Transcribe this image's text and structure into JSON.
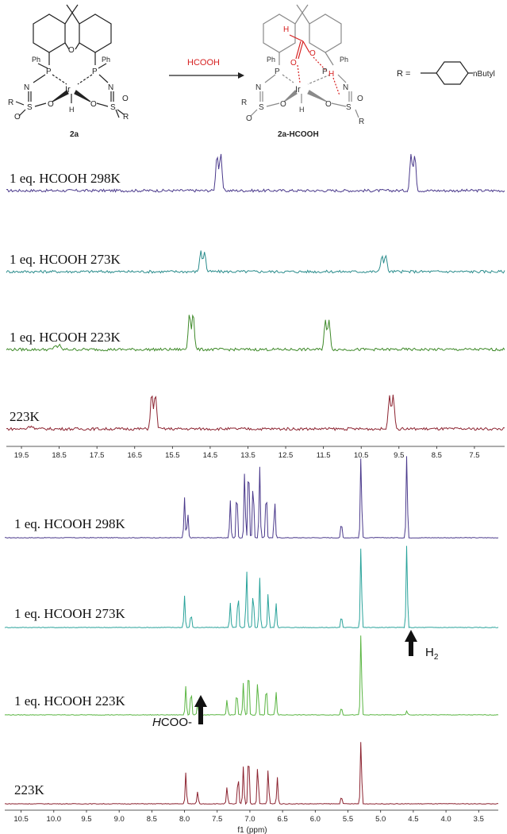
{
  "scheme": {
    "reagent": "HCOOH",
    "reactant_label": "2a",
    "product_label": "2a-HCOOH",
    "r_definition_prefix": "R =",
    "r_substituent": "nButyl",
    "atoms": {
      "ir": "Ir",
      "p": "P",
      "n": "N",
      "s": "S",
      "o": "O",
      "h": "H",
      "r": "R",
      "ph": "Ph"
    },
    "colors": {
      "reagent": "#d62020",
      "product_highlight": "#d62020",
      "structure": "#222222"
    }
  },
  "chart_data": [
    {
      "type": "line",
      "title": "",
      "xlabel": "",
      "ylabel": "",
      "xlim": [
        19.9,
        6.7
      ],
      "xticks": [
        19.5,
        18.5,
        17.5,
        16.5,
        15.5,
        14.5,
        13.5,
        12.5,
        11.5,
        10.5,
        9.5,
        8.5,
        7.5
      ],
      "tick_labels": [
        "19.5",
        "18.5",
        "17.5",
        "16.5",
        "15.5",
        "14.5",
        "13.5",
        "12.5",
        "11.5",
        "10.5",
        "9.5",
        "8.5",
        "7.5"
      ],
      "grid": false,
      "legend": "none",
      "series": [
        {
          "name": "1 eq. HCOOH 298K",
          "color": "#4b3a8c",
          "peaks": [
            {
              "ppm": 14.22,
              "height": 1.0
            },
            {
              "ppm": 9.08,
              "height": 1.0
            }
          ]
        },
        {
          "name": "1 eq. HCOOH 273K",
          "color": "#2a8c8c",
          "peaks": [
            {
              "ppm": 14.65,
              "height": 0.55
            },
            {
              "ppm": 9.85,
              "height": 0.45
            }
          ]
        },
        {
          "name": "1 eq. HCOOH 223K",
          "color": "#3f8a2a",
          "peaks": [
            {
              "ppm": 14.95,
              "height": 1.0
            },
            {
              "ppm": 11.35,
              "height": 0.8
            },
            {
              "ppm": 18.5,
              "height": 0.12
            }
          ]
        },
        {
          "name": "223K",
          "color": "#8c2330",
          "peaks": [
            {
              "ppm": 15.95,
              "height": 0.95
            },
            {
              "ppm": 9.65,
              "height": 0.95
            },
            {
              "ppm": 19.2,
              "height": 0.08
            }
          ]
        }
      ]
    },
    {
      "type": "line",
      "title": "",
      "xlabel": "f1 (ppm)",
      "ylabel": "",
      "xlim": [
        10.75,
        3.2
      ],
      "xticks": [
        10.5,
        10.0,
        9.5,
        9.0,
        8.5,
        8.0,
        7.5,
        7.0,
        6.5,
        6.0,
        5.5,
        5.0,
        4.5,
        4.0,
        3.5
      ],
      "tick_labels": [
        "10.5",
        "10.0",
        "9.5",
        "9.0",
        "8.5",
        "8.0",
        "7.5",
        "7.0",
        "6.5",
        "6.0",
        "5.5",
        "5.0",
        "4.5",
        "4.0",
        "3.5"
      ],
      "grid": false,
      "legend": "none",
      "series": [
        {
          "name": "1 eq. HCOOH 298K",
          "color": "#4b3a8c",
          "peaks": [
            {
              "ppm": 8.0,
              "height": 0.48
            },
            {
              "ppm": 7.95,
              "height": 0.3
            },
            {
              "ppm": 7.3,
              "height": 0.45
            },
            {
              "ppm": 7.2,
              "height": 0.62
            },
            {
              "ppm": 7.08,
              "height": 0.8
            },
            {
              "ppm": 7.02,
              "height": 1.0
            },
            {
              "ppm": 6.95,
              "height": 0.72
            },
            {
              "ppm": 6.85,
              "height": 0.85
            },
            {
              "ppm": 6.75,
              "height": 0.62
            },
            {
              "ppm": 6.62,
              "height": 0.45
            },
            {
              "ppm": 5.6,
              "height": 0.2
            },
            {
              "ppm": 5.3,
              "height": 1.0
            },
            {
              "ppm": 4.6,
              "height": 1.0
            }
          ]
        },
        {
          "name": "1 eq. HCOOH 273K",
          "color": "#2aa39b",
          "peaks": [
            {
              "ppm": 8.0,
              "height": 0.38
            },
            {
              "ppm": 7.9,
              "height": 0.18
            },
            {
              "ppm": 7.3,
              "height": 0.3
            },
            {
              "ppm": 7.18,
              "height": 0.42
            },
            {
              "ppm": 7.05,
              "height": 0.7
            },
            {
              "ppm": 6.95,
              "height": 0.45
            },
            {
              "ppm": 6.85,
              "height": 0.6
            },
            {
              "ppm": 6.72,
              "height": 0.42
            },
            {
              "ppm": 6.6,
              "height": 0.3
            },
            {
              "ppm": 5.6,
              "height": 0.15
            },
            {
              "ppm": 5.3,
              "height": 1.0
            },
            {
              "ppm": 4.6,
              "height": 1.0
            }
          ]
        },
        {
          "name": "1 eq. HCOOH 223K",
          "color": "#5ab542",
          "peaks": [
            {
              "ppm": 7.98,
              "height": 0.35
            },
            {
              "ppm": 7.9,
              "height": 0.32
            },
            {
              "ppm": 7.8,
              "height": 0.14
            },
            {
              "ppm": 7.35,
              "height": 0.18
            },
            {
              "ppm": 7.2,
              "height": 0.3
            },
            {
              "ppm": 7.1,
              "height": 0.38
            },
            {
              "ppm": 7.02,
              "height": 0.62
            },
            {
              "ppm": 6.88,
              "height": 0.42
            },
            {
              "ppm": 6.75,
              "height": 0.38
            },
            {
              "ppm": 6.6,
              "height": 0.28
            },
            {
              "ppm": 5.6,
              "height": 0.1
            },
            {
              "ppm": 5.3,
              "height": 1.0
            },
            {
              "ppm": 4.6,
              "height": 0.05
            }
          ]
        },
        {
          "name": "223K",
          "color": "#8c2330",
          "peaks": [
            {
              "ppm": 7.98,
              "height": 0.38
            },
            {
              "ppm": 7.8,
              "height": 0.15
            },
            {
              "ppm": 7.35,
              "height": 0.2
            },
            {
              "ppm": 7.18,
              "height": 0.35
            },
            {
              "ppm": 7.1,
              "height": 0.45
            },
            {
              "ppm": 7.02,
              "height": 0.68
            },
            {
              "ppm": 6.88,
              "height": 0.48
            },
            {
              "ppm": 6.72,
              "height": 0.42
            },
            {
              "ppm": 6.58,
              "height": 0.32
            },
            {
              "ppm": 5.6,
              "height": 0.1
            },
            {
              "ppm": 5.3,
              "height": 0.78
            }
          ]
        }
      ]
    }
  ],
  "annotations": {
    "h2_label_main": "H",
    "h2_label_sub": "2",
    "hcoo_label_italic": "H",
    "hcoo_label_rest": "COO-"
  }
}
